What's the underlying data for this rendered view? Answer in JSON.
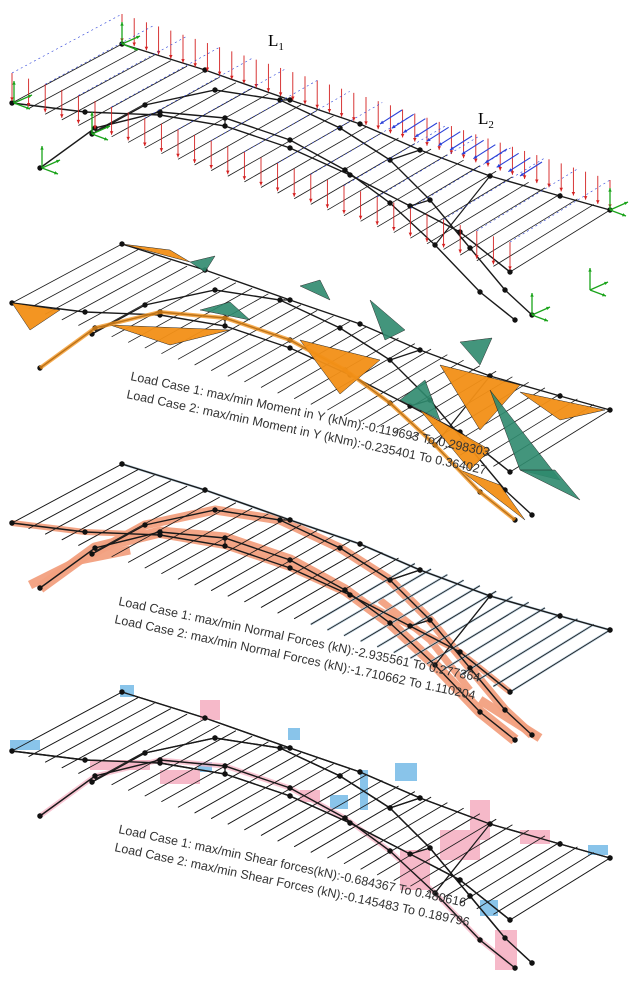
{
  "load_labels": {
    "l1": {
      "letter": "L",
      "sub": "1",
      "color": "#d42020"
    },
    "l2": {
      "letter": "L",
      "sub": "2",
      "color": "#2a40d8"
    }
  },
  "panels": [
    {
      "key": "loads",
      "lines": []
    },
    {
      "key": "moment",
      "lines": [
        "Load Case 1: max/min Moment in Y (kNm):-0.119693 To 0.298303",
        "Load Case 2: max/min Moment in Y (kNm):-0.235401 To 0.364027"
      ]
    },
    {
      "key": "normal",
      "lines": [
        "Load Case 1: max/min Normal Forces (kN):-2.935561 To 0.277364",
        "Load Case 2: max/min Normal Forces (kN):-1.710662 To 1.110204"
      ]
    },
    {
      "key": "shear",
      "lines": [
        "Load Case 1: max/min Shear forces(kN):-0.684367 To 0.480616",
        "Load Case 2: max/min Shear Forces (kN):-0.145483 To 0.189796"
      ]
    }
  ],
  "colors": {
    "structure": "#1a1a1a",
    "node": "#111111",
    "load_case_1_arrow": "#d42020",
    "load_case_2_arrow": "#2a40d8",
    "support_axes": "#1aa31a",
    "moment_case_1": "#f39017",
    "moment_case_2": "#2f8a6e",
    "normal_case_1": "#f2a07f",
    "normal_case_2": "#aec7d8",
    "shear_case_1": "#f5b3c4",
    "shear_case_2": "#7fbfe8"
  }
}
